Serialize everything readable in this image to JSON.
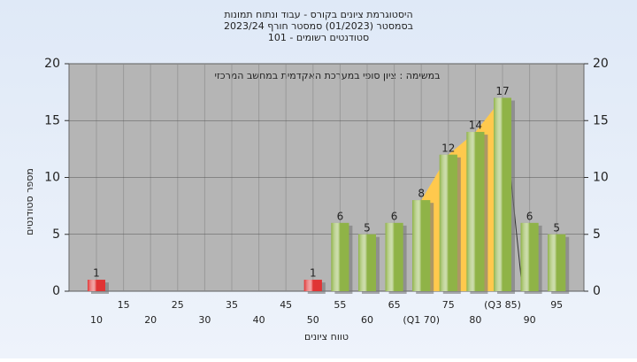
{
  "chart_data": {
    "type": "bar",
    "title": [
      "היסטוגרמת ציונים בקורס - עבוד ונתוח תמונות",
      "בסמסטר  (01/2023)  סמסטר חורף  2023/24",
      "סטודנטים רשומים - 101"
    ],
    "annotation": "במשימה : ציון סופי במערכת האקדמית במחשב המרכזי",
    "x_label": "טווח ציונים",
    "y_label": "מספר סטודנטים",
    "categories": [
      "10",
      "15",
      "20",
      "25",
      "30",
      "35",
      "40",
      "45",
      "50",
      "55",
      "60",
      "65",
      "(Q1 70)",
      "75",
      "80",
      "(Q3 85)",
      "90",
      "95"
    ],
    "values": [
      1,
      0,
      0,
      0,
      0,
      0,
      0,
      0,
      1,
      6,
      5,
      6,
      8,
      12,
      14,
      17,
      6,
      5
    ],
    "colors": [
      "#e03434",
      "#e03434",
      "#e03434",
      "#e03434",
      "#e03434",
      "#e03434",
      "#e03434",
      "#e03434",
      "#e03434",
      "#8fb347",
      "#8fb347",
      "#8fb347",
      "#8fb347",
      "#8fb347",
      "#8fb347",
      "#8fb347",
      "#8fb347",
      "#8fb347"
    ],
    "quartile_color": "#ffc94d",
    "ylim": [
      0,
      20
    ],
    "yticks": [
      0,
      5,
      10,
      15,
      20
    ],
    "grid": true
  }
}
